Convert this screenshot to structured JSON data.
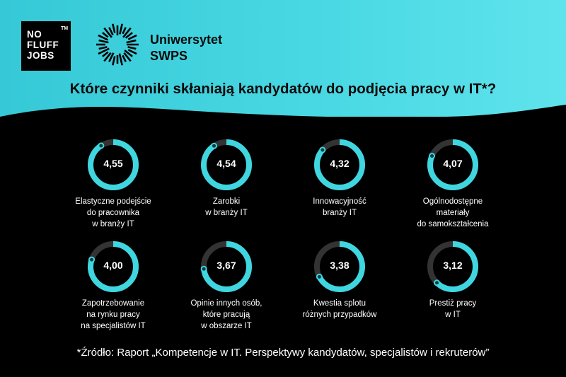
{
  "brands": {
    "nofluff": {
      "lines": [
        "NO",
        "FLUFF",
        "JOBS"
      ],
      "tm": "TM"
    },
    "swps": {
      "lines": [
        "Uniwersytet",
        "SWPS"
      ]
    }
  },
  "colors": {
    "accent": "#3fd6e0",
    "track": "#333333",
    "background": "#000000",
    "band": "#48d8e3"
  },
  "chart_data": {
    "type": "radial",
    "title": "Które czynniki skłaniają kandydatów do podjęcia pracy w IT*?",
    "scale_max": 5,
    "items": [
      {
        "value": 4.55,
        "display": "4,55",
        "label_lines": [
          "Elastyczne podejście",
          "do pracownika",
          "w branży IT"
        ]
      },
      {
        "value": 4.54,
        "display": "4,54",
        "label_lines": [
          "Zarobki",
          "w branży IT"
        ]
      },
      {
        "value": 4.32,
        "display": "4,32",
        "label_lines": [
          "Innowacyjność",
          "branży IT"
        ]
      },
      {
        "value": 4.07,
        "display": "4,07",
        "label_lines": [
          "Ogólnodostępne",
          "materiały",
          "do samokształcenia"
        ]
      },
      {
        "value": 4.0,
        "display": "4,00",
        "label_lines": [
          "Zapotrzebowanie",
          "na rynku pracy",
          "na specjalistów IT"
        ]
      },
      {
        "value": 3.67,
        "display": "3,67",
        "label_lines": [
          "Opinie innych osób,",
          "które pracują",
          "w obszarze IT"
        ]
      },
      {
        "value": 3.38,
        "display": "3,38",
        "label_lines": [
          "Kwestia splotu",
          "różnych przypadków"
        ]
      },
      {
        "value": 3.12,
        "display": "3,12",
        "label_lines": [
          "Prestiż pracy",
          "w IT"
        ]
      }
    ]
  },
  "source": "*Źródło: Raport „Kompetencje w IT. Perspektywy kandydatów, specjalistów i rekruterów”"
}
